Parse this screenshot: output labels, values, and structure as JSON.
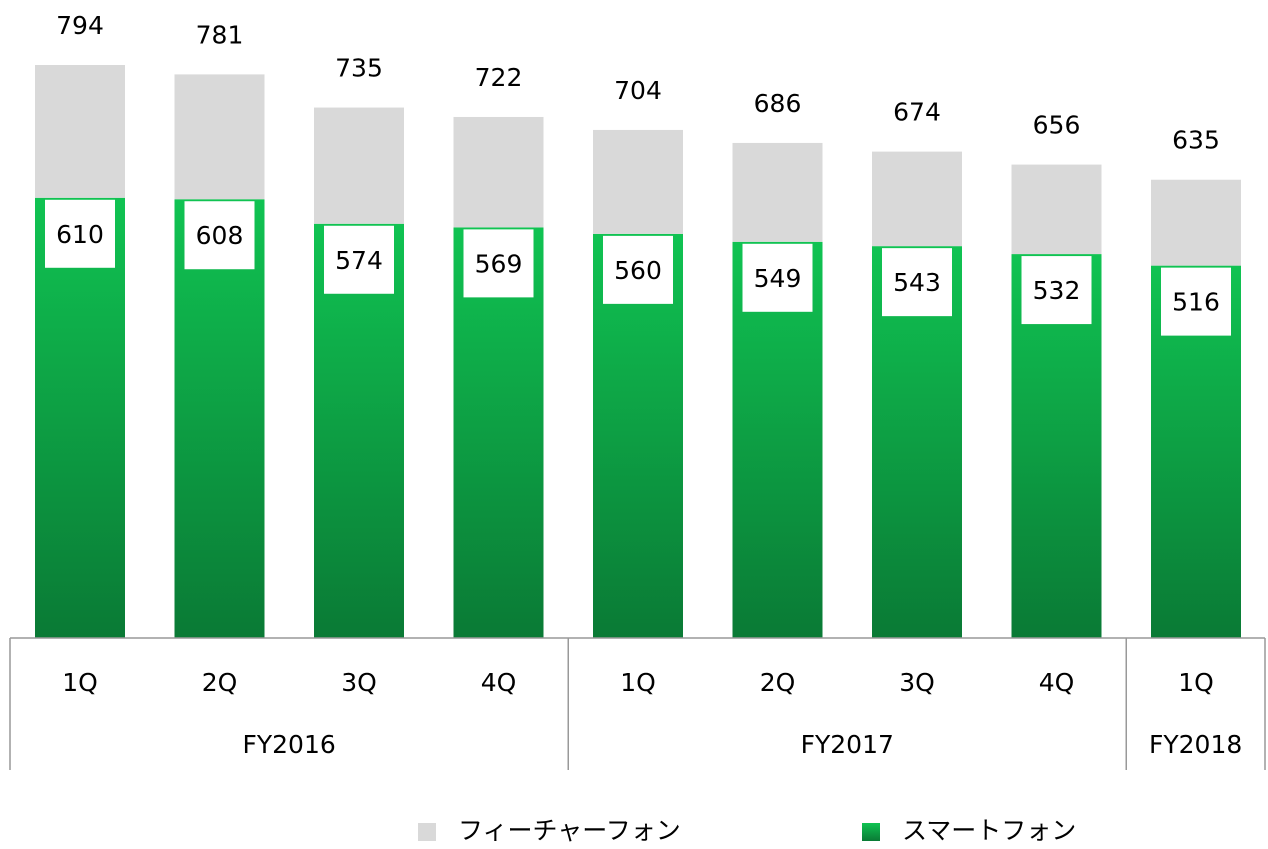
{
  "chart_data": {
    "type": "stacked_bar",
    "categories": [
      "1Q",
      "2Q",
      "3Q",
      "4Q",
      "1Q",
      "2Q",
      "3Q",
      "4Q",
      "1Q"
    ],
    "groups": [
      {
        "name": "FY2016",
        "count": 4
      },
      {
        "name": "FY2017",
        "count": 4
      },
      {
        "name": "FY2018",
        "count": 1
      }
    ],
    "series": [
      {
        "name": "フィーチャーフォン",
        "color": "#d9d9d9",
        "values": [
          184,
          173,
          161,
          153,
          144,
          137,
          131,
          124,
          119
        ]
      },
      {
        "name": "スマートフォン",
        "color": "#0fbd50",
        "values": [
          610,
          608,
          574,
          569,
          560,
          549,
          543,
          532,
          516
        ]
      }
    ],
    "totals": [
      794,
      781,
      735,
      722,
      704,
      686,
      674,
      656,
      635
    ],
    "legend": "bottom"
  }
}
